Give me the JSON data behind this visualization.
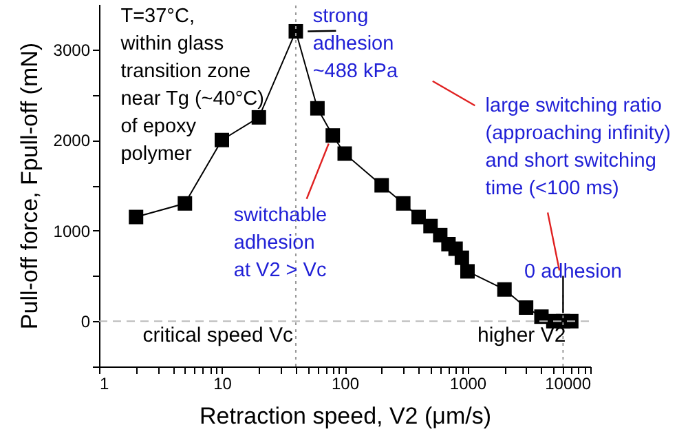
{
  "chart_data": {
    "type": "line",
    "xlabel": "Retraction speed, V2 (μm/s)",
    "ylabel": "Pull-off force, Fpull-off (mN)",
    "x": [
      2,
      5,
      10,
      20,
      40,
      60,
      80,
      100,
      200,
      300,
      400,
      500,
      600,
      700,
      800,
      900,
      1000,
      2000,
      3000,
      4000,
      5000,
      6000,
      7000
    ],
    "series": [
      {
        "color": "#000000",
        "values": [
          1150,
          1300,
          2000,
          2250,
          3200,
          2350,
          2050,
          1850,
          1500,
          1300,
          1150,
          1050,
          950,
          850,
          800,
          700,
          550,
          350,
          150,
          50,
          0,
          0,
          0
        ]
      }
    ],
    "log": "x",
    "xlim": [
      1,
      10000
    ],
    "ylim": [
      -500,
      3500
    ],
    "xticks": [
      1,
      {
        "value": 2,
        "label": null
      },
      {
        "value": 3,
        "label": null
      },
      {
        "value": 4,
        "label": null
      },
      {
        "value": 5,
        "label": null
      },
      {
        "value": 6,
        "label": null
      },
      {
        "value": 7,
        "label": null
      },
      {
        "value": 8,
        "label": null
      },
      {
        "value": 9,
        "label": null
      },
      10,
      {
        "value": 20,
        "label": null
      },
      {
        "value": 30,
        "label": null
      },
      {
        "value": 40,
        "label": null
      },
      {
        "value": 50,
        "label": null
      },
      {
        "value": 60,
        "label": null
      },
      {
        "value": 70,
        "label": null
      },
      {
        "value": 80,
        "label": null
      },
      {
        "value": 90,
        "label": null
      },
      100,
      {
        "value": 200,
        "label": null
      },
      {
        "value": 300,
        "label": null
      },
      {
        "value": 400,
        "label": null
      },
      {
        "value": 500,
        "label": null
      },
      {
        "value": 600,
        "label": null
      },
      {
        "value": 700,
        "label": null
      },
      {
        "value": 800,
        "label": null
      },
      {
        "value": 900,
        "label": null
      },
      1000,
      {
        "value": 2000,
        "label": null
      },
      {
        "value": 3000,
        "label": null
      },
      {
        "value": 4000,
        "label": null
      },
      {
        "value": 5000,
        "label": null
      },
      {
        "value": 6000,
        "label": null
      },
      {
        "value": 7000,
        "label": null
      },
      {
        "value": 8000,
        "label": null
      },
      {
        "value": 9000,
        "label": null
      },
      10000
    ],
    "yticks": [
      {
        "value": -500,
        "label": null
      },
      0,
      {
        "value": 500,
        "label": null
      },
      1000,
      {
        "value": 1500,
        "label": null
      },
      2000,
      {
        "value": 2500,
        "label": null
      },
      3000
    ],
    "marker": "square",
    "line_style": "solid",
    "grid": false,
    "ref_lines": [
      {
        "axis": "x",
        "value": 40,
        "label": "critical speed Vc",
        "color": "#999999",
        "line_style": "dotted"
      },
      {
        "axis": "x",
        "value": 6000,
        "label": "higher V2",
        "color": "#999999",
        "line_style": "dotted"
      },
      {
        "axis": "y",
        "value": 0,
        "color": "#bbbbbb",
        "line_style": "dashed"
      }
    ],
    "annotations": [
      "T=37°C,\nwithin glass\ntransition zone\nnear Tg (~40°C)\nof epoxy\npolymer",
      {
        "text": "strong\nadhesion\n~488 kPa",
        "x": 40,
        "y": 3200
      },
      {
        "text": "switchable\nadhesion\nat V2 > Vc",
        "x": 80,
        "y": 2050
      },
      "large switching ratio\n(approaching infinity)\nand short switching\ntime (<100 ms)",
      {
        "text": "0 adhesion",
        "x": 6000,
        "y": 0
      }
    ]
  }
}
